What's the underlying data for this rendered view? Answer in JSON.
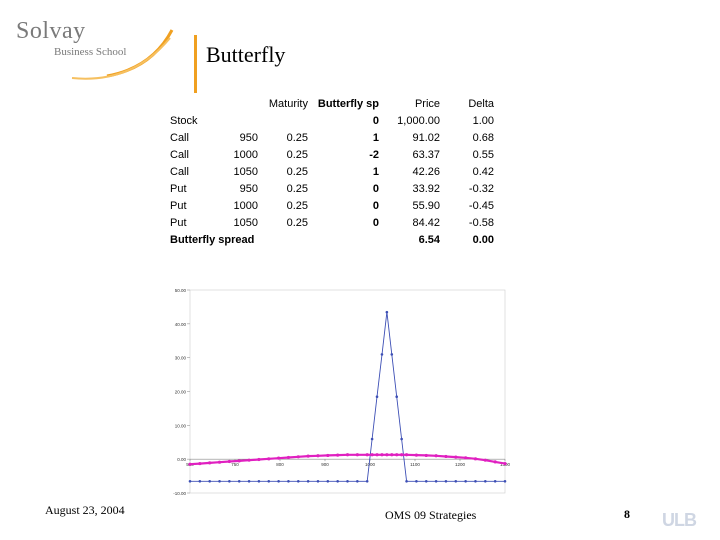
{
  "logo": {
    "line1": "Solvay",
    "line2": "Business School"
  },
  "slide": {
    "title": "Butterfly"
  },
  "table": {
    "headers": [
      "",
      "",
      "Maturity",
      "Butterfly sp",
      "Price",
      "Delta"
    ],
    "rows": [
      [
        "Stock",
        "",
        "",
        "0",
        "1,000.00",
        "1.00"
      ],
      [
        "Call",
        "950",
        "0.25",
        "1",
        "91.02",
        "0.68"
      ],
      [
        "Call",
        "1000",
        "0.25",
        "-2",
        "63.37",
        "0.55"
      ],
      [
        "Call",
        "1050",
        "0.25",
        "1",
        "42.26",
        "0.42"
      ],
      [
        "Put",
        "950",
        "0.25",
        "0",
        "33.92",
        "-0.32"
      ],
      [
        "Put",
        "1000",
        "0.25",
        "0",
        "55.90",
        "-0.45"
      ],
      [
        "Put",
        "1050",
        "0.25",
        "0",
        "84.42",
        "-0.58"
      ]
    ],
    "total": [
      "Butterfly spread",
      "",
      "",
      "",
      "6.54",
      "0.00"
    ]
  },
  "chart_data": {
    "type": "line",
    "yticks": [
      "-10.00",
      "0.00",
      "10.00",
      "20.00",
      "30.00",
      "40.00",
      "50.00"
    ],
    "xticks": [
      "500",
      "750",
      "800",
      "900",
      "1000",
      "1100",
      "1200",
      "1300"
    ],
    "ylim": [
      -10,
      50
    ],
    "x": [
      500,
      525,
      550,
      575,
      600,
      625,
      650,
      675,
      700,
      725,
      750,
      775,
      800,
      825,
      850,
      875,
      900,
      925,
      950,
      962.5,
      975,
      987.5,
      1000,
      1012.5,
      1025,
      1037.5,
      1050,
      1075,
      1100,
      1125,
      1150,
      1175,
      1200,
      1225,
      1250,
      1275,
      1300
    ],
    "series": [
      {
        "color": "#3d4fb5",
        "values": [
          -6.54,
          -6.54,
          -6.54,
          -6.54,
          -6.54,
          -6.54,
          -6.54,
          -6.54,
          -6.54,
          -6.54,
          -6.54,
          -6.54,
          -6.54,
          -6.54,
          -6.54,
          -6.54,
          -6.54,
          -6.54,
          -6.54,
          5.96,
          18.46,
          30.96,
          43.46,
          30.96,
          18.46,
          5.96,
          -6.54,
          -6.54,
          -6.54,
          -6.54,
          -6.54,
          -6.54,
          -6.54,
          -6.54,
          -6.54,
          -6.54,
          -6.54
        ]
      },
      {
        "color": "#e020c0",
        "values": [
          -1.5,
          -1.3,
          -1.1,
          -0.9,
          -0.7,
          -0.5,
          -0.3,
          -0.1,
          0.1,
          0.3,
          0.5,
          0.7,
          0.9,
          1.0,
          1.1,
          1.2,
          1.3,
          1.3,
          1.3,
          1.3,
          1.3,
          1.3,
          1.3,
          1.3,
          1.3,
          1.3,
          1.3,
          1.2,
          1.1,
          1.0,
          0.8,
          0.6,
          0.4,
          0.1,
          -0.3,
          -0.8,
          -1.3
        ]
      }
    ]
  },
  "footer": {
    "date": "August 23, 2004",
    "course": "OMS 09 Strategies",
    "page": "8",
    "brand": "ULB"
  },
  "colors": {
    "accent": "#f0a020"
  }
}
